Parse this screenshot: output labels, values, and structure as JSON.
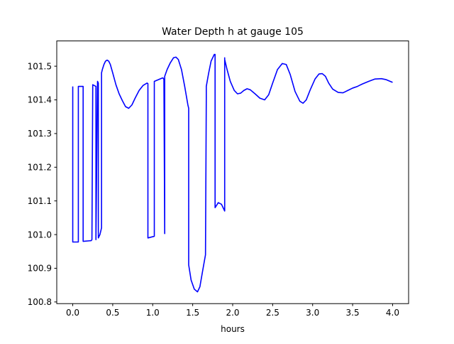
{
  "chart_data": {
    "type": "line",
    "title": "Water Depth h at gauge 105",
    "xlabel": "hours",
    "ylabel": "",
    "xlim": [
      -0.2,
      4.2
    ],
    "ylim": [
      100.795,
      101.575
    ],
    "x_ticks": [
      0.0,
      0.5,
      1.0,
      1.5,
      2.0,
      2.5,
      3.0,
      3.5,
      4.0
    ],
    "x_tick_labels": [
      "0.0",
      "0.5",
      "1.0",
      "1.5",
      "2.0",
      "2.5",
      "3.0",
      "3.5",
      "4.0"
    ],
    "y_ticks": [
      100.8,
      100.9,
      101.0,
      101.1,
      101.2,
      101.3,
      101.4,
      101.5
    ],
    "y_tick_labels": [
      "100.8",
      "100.9",
      "101.0",
      "101.1",
      "101.2",
      "101.3",
      "101.4",
      "101.5"
    ],
    "grid": false,
    "legend": "none",
    "series": [
      {
        "color": "#0000ff",
        "x": [
          0.0,
          0.0,
          0.07,
          0.07,
          0.13,
          0.13,
          0.23,
          0.24,
          0.25,
          0.25,
          0.29,
          0.29,
          0.31,
          0.32,
          0.32,
          0.34,
          0.36,
          0.36,
          0.37,
          0.39,
          0.41,
          0.43,
          0.45,
          0.47,
          0.5,
          0.54,
          0.58,
          0.62,
          0.66,
          0.7,
          0.74,
          0.78,
          0.83,
          0.88,
          0.93,
          0.94,
          0.94,
          1.02,
          1.02,
          1.07,
          1.12,
          1.13,
          1.14,
          1.15,
          1.15,
          1.18,
          1.22,
          1.26,
          1.29,
          1.32,
          1.36,
          1.4,
          1.44,
          1.45,
          1.45,
          1.48,
          1.52,
          1.56,
          1.59,
          1.63,
          1.66,
          1.67,
          1.67,
          1.7,
          1.73,
          1.77,
          1.78,
          1.78,
          1.82,
          1.86,
          1.9,
          1.9,
          1.9,
          1.93,
          1.97,
          2.02,
          2.06,
          2.1,
          2.14,
          2.18,
          2.22,
          2.28,
          2.34,
          2.4,
          2.45,
          2.5,
          2.56,
          2.62,
          2.67,
          2.72,
          2.78,
          2.84,
          2.88,
          2.92,
          2.97,
          3.03,
          3.08,
          3.12,
          3.16,
          3.2,
          3.25,
          3.32,
          3.38,
          3.44,
          3.5,
          3.56,
          3.62,
          3.7,
          3.78,
          3.86,
          3.92,
          3.97,
          4.0
        ],
        "y": [
          101.44,
          100.978,
          100.978,
          101.44,
          101.44,
          100.98,
          100.982,
          100.985,
          101.445,
          101.445,
          101.44,
          100.985,
          101.455,
          101.45,
          100.99,
          101.0,
          101.02,
          101.48,
          101.49,
          101.505,
          101.515,
          101.518,
          101.515,
          101.505,
          101.48,
          101.445,
          101.418,
          101.398,
          101.38,
          101.375,
          101.385,
          101.405,
          101.428,
          101.443,
          101.45,
          101.448,
          100.99,
          100.995,
          101.455,
          101.46,
          101.465,
          101.465,
          101.46,
          101.003,
          101.47,
          101.49,
          101.51,
          101.525,
          101.527,
          101.52,
          101.49,
          101.44,
          101.385,
          101.375,
          100.91,
          100.865,
          100.838,
          100.83,
          100.845,
          100.9,
          100.94,
          101.405,
          101.44,
          101.48,
          101.515,
          101.535,
          101.535,
          101.08,
          101.095,
          101.09,
          101.07,
          101.525,
          101.52,
          101.49,
          101.455,
          101.428,
          101.418,
          101.42,
          101.428,
          101.433,
          101.43,
          101.418,
          101.405,
          101.4,
          101.415,
          101.45,
          101.49,
          101.508,
          101.505,
          101.475,
          101.425,
          101.396,
          101.39,
          101.4,
          101.43,
          101.462,
          101.477,
          101.478,
          101.47,
          101.45,
          101.432,
          101.422,
          101.421,
          101.428,
          101.435,
          101.44,
          101.447,
          101.455,
          101.462,
          101.463,
          101.46,
          101.455,
          101.452
        ]
      }
    ]
  }
}
